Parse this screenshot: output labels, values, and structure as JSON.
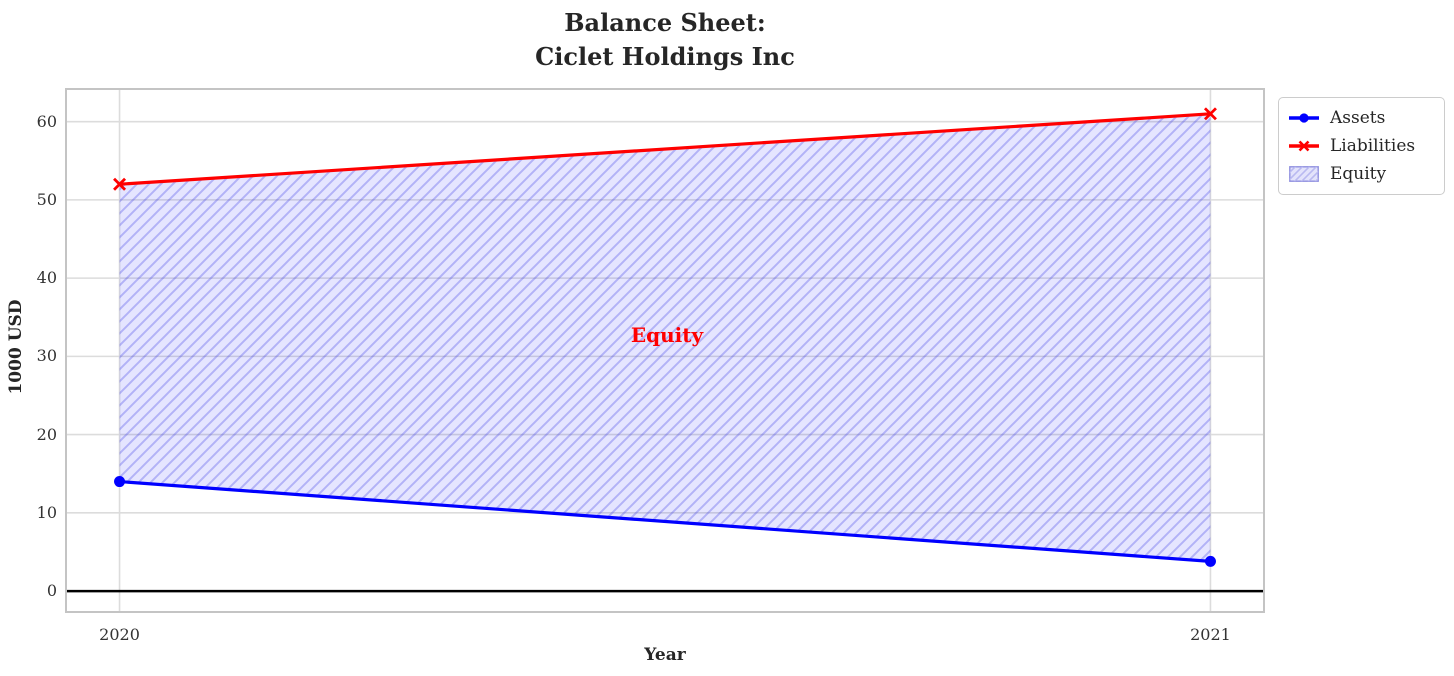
{
  "title": "Balance Sheet:\nCiclet Holdings Inc",
  "annotation": {
    "text": "Equity",
    "color": "#ff0000"
  },
  "axes": {
    "xlabel": "Year",
    "ylabel": "1000 USD",
    "x_ticks": [
      "2020",
      "2021"
    ],
    "y_ticks": [
      "0",
      "10",
      "20",
      "30",
      "40",
      "50",
      "60"
    ]
  },
  "legend": {
    "items": [
      {
        "label": "Assets",
        "type": "line-circle",
        "color": "#0000ff"
      },
      {
        "label": "Liabilities",
        "type": "line-x",
        "color": "#ff0000"
      },
      {
        "label": "Equity",
        "type": "hatch-patch",
        "fill": "#e3e3fb",
        "hatch": "#b9b9f1",
        "edge": "#8f8fdf"
      }
    ]
  },
  "colors": {
    "grid": "#dcdcdc",
    "border": "#c4c4c4",
    "zero_line": "#000000",
    "background": "#ffffff",
    "text": "#262626",
    "equity_fill": "rgba(0,0,255,0.10)",
    "equity_hatch": "rgba(60,60,230,0.30)"
  },
  "chart_data": {
    "type": "line",
    "title": "Balance Sheet:\nCiclet Holdings Inc",
    "xlabel": "Year",
    "ylabel": "1000 USD",
    "x": [
      2020,
      2021
    ],
    "series": [
      {
        "name": "Assets",
        "values": [
          14,
          3.8
        ],
        "color": "#0000ff",
        "marker": "circle"
      },
      {
        "name": "Liabilities",
        "values": [
          52,
          61
        ],
        "color": "#ff0000",
        "marker": "x"
      }
    ],
    "fill_between": {
      "name": "Equity",
      "upper": "Liabilities",
      "lower": "Assets",
      "hatch": "/"
    },
    "xlim": [
      2019.95,
      2021.05
    ],
    "ylim": [
      -2.8,
      64.3
    ],
    "grid": true,
    "zero_line": true,
    "legend_position": "upper-right-outside"
  }
}
